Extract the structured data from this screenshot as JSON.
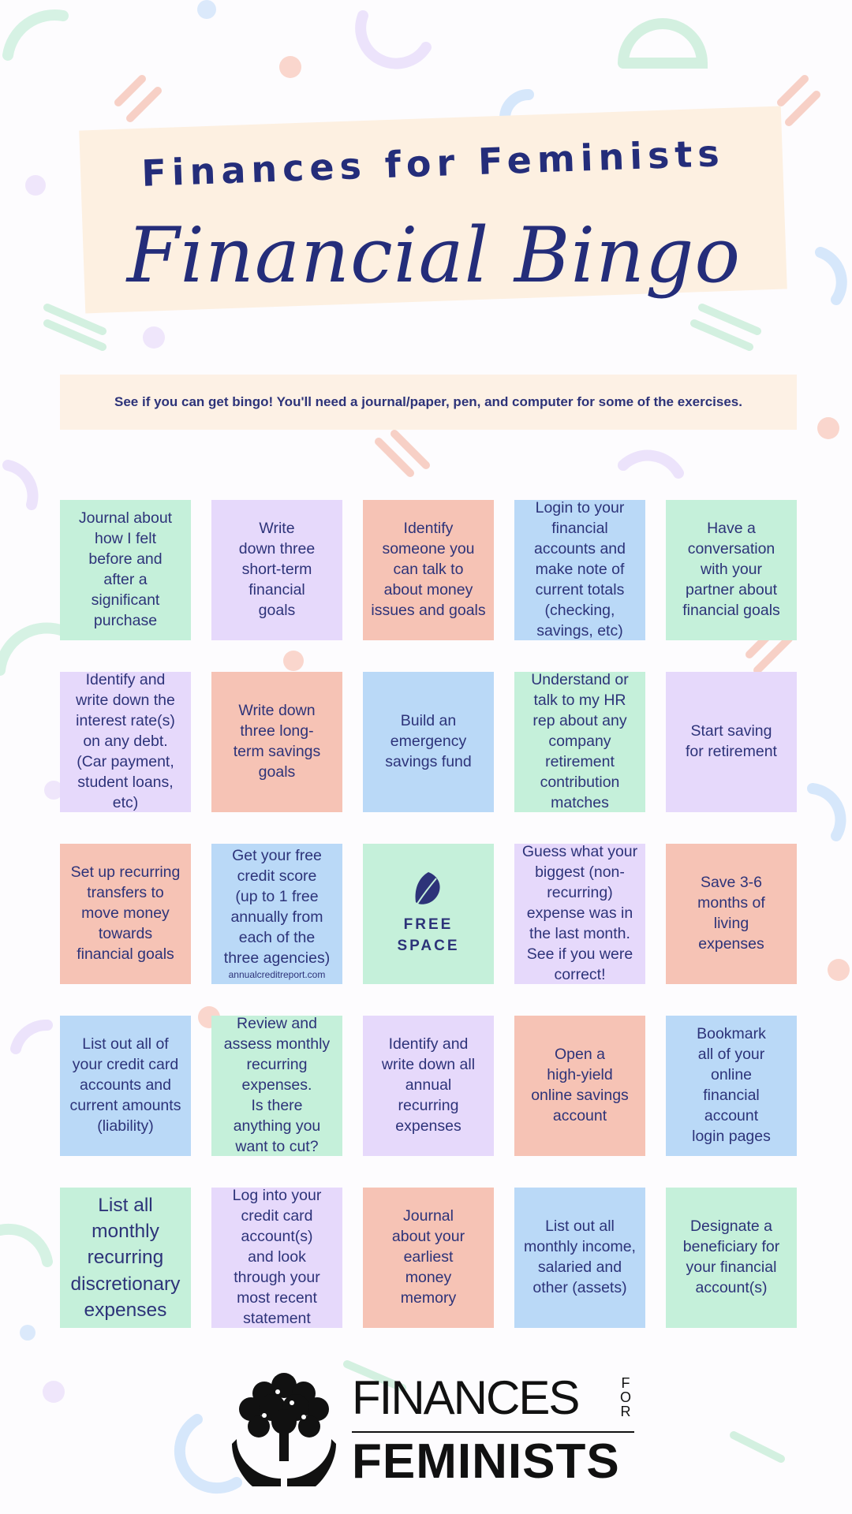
{
  "header": {
    "title": "Finances for Feminists",
    "subtitle": "Financial Bingo"
  },
  "instructions": "See if you can get bingo! You'll need a journal/paper, pen, and computer for some of the exercises.",
  "colors": {
    "title": "#242d7a",
    "green": "#c5f0da",
    "purple": "#e6d9fb",
    "salmon": "#f6c3b5",
    "blue": "#bad9f7",
    "banner": "#fdf0e1"
  },
  "bingo": {
    "rows": [
      [
        {
          "text": "Journal about\nhow I felt\nbefore and\nafter a\nsignificant\npurchase",
          "color": "green"
        },
        {
          "text": "Write\ndown three\nshort-term\nfinancial\ngoals",
          "color": "purple"
        },
        {
          "text": "Identify\nsomeone you\ncan talk to\nabout money\nissues and goals",
          "color": "salmon"
        },
        {
          "text": "Login to your\nfinancial\naccounts and\nmake note of\ncurrent totals\n(checking,\nsavings, etc)",
          "color": "blue"
        },
        {
          "text": "Have a\nconversation\nwith your\npartner about\nfinancial goals",
          "color": "green"
        }
      ],
      [
        {
          "text": "Identify and\nwrite down the\ninterest rate(s)\non any debt.\n(Car payment,\nstudent loans,\netc)",
          "color": "purple"
        },
        {
          "text": "Write down\nthree long-\nterm savings\ngoals",
          "color": "salmon"
        },
        {
          "text": "Build an\nemergency\nsavings fund",
          "color": "blue"
        },
        {
          "text": "Understand or\ntalk to my HR\nrep about any\ncompany\nretirement\ncontribution\nmatches",
          "color": "green"
        },
        {
          "text": "Start saving\nfor retirement",
          "color": "purple"
        }
      ],
      [
        {
          "text": "Set up recurring\ntransfers to\nmove money\ntowards\nfinancial goals",
          "color": "salmon"
        },
        {
          "text": "Get your free\ncredit score\n(up to 1 free\nannually from\neach of the\nthree agencies)",
          "sub": "annualcreditreport.com",
          "color": "blue"
        },
        {
          "text": "FREE\nSPACE",
          "color": "green",
          "free": true,
          "icon": "leaf-icon"
        },
        {
          "text": "Guess what your\nbiggest (non-\nrecurring)\nexpense was in\nthe last month.\nSee if you were\ncorrect!",
          "color": "purple"
        },
        {
          "text": "Save 3-6\nmonths of\nliving\nexpenses",
          "color": "salmon"
        }
      ],
      [
        {
          "text": "List out all of\nyour credit card\naccounts and\ncurrent amounts\n(liability)",
          "color": "blue"
        },
        {
          "text": "Review and\nassess monthly\nrecurring\nexpenses.\nIs there\nanything you\nwant to cut?",
          "color": "green"
        },
        {
          "text": "Identify and\nwrite down all\nannual\nrecurring\nexpenses",
          "color": "purple"
        },
        {
          "text": "Open a\nhigh-yield\nonline savings\naccount",
          "color": "salmon"
        },
        {
          "text": "Bookmark\nall of your\nonline\nfinancial\naccount\nlogin pages",
          "color": "blue"
        }
      ],
      [
        {
          "text": "List all\nmonthly\nrecurring\ndiscretionary\nexpenses",
          "color": "green",
          "big": true
        },
        {
          "text": "Log into your\ncredit card\naccount(s)\nand look\nthrough your\nmost recent\nstatement",
          "color": "purple"
        },
        {
          "text": "Journal\nabout your\nearliest\nmoney\nmemory",
          "color": "salmon"
        },
        {
          "text": "List out all\nmonthly income,\nsalaried and\nother (assets)",
          "color": "blue"
        },
        {
          "text": "Designate a\nbeneficiary for\nyour financial\naccount(s)",
          "color": "green"
        }
      ]
    ]
  },
  "logo": {
    "line1": "FINANCES",
    "for": "FOR",
    "line2": "FEMINISTS",
    "icon": "tree-hands-icon"
  }
}
